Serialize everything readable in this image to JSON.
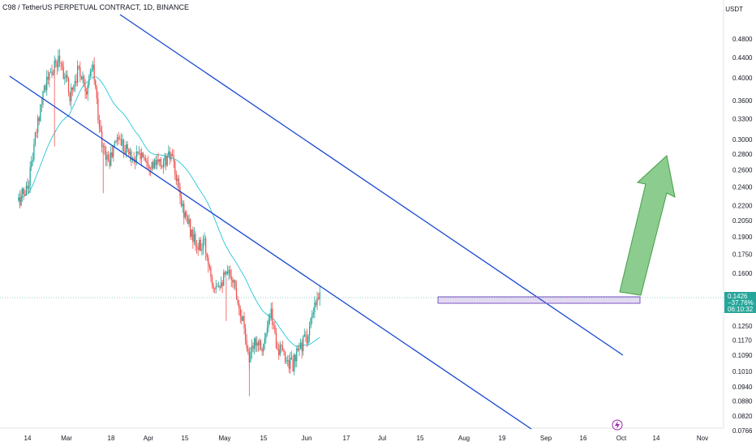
{
  "chart_data": {
    "type": "candlestick",
    "title": "C98 / TetherUS PERPETUAL CONTRACT, 1D, BINANCE",
    "unit": "USDT",
    "y_scale": "log",
    "ylim": [
      0.0766,
      0.53
    ],
    "y_ticks": [
      "0.4800",
      "0.4400",
      "0.4000",
      "0.3600",
      "0.3300",
      "0.3000",
      "0.2800",
      "0.2600",
      "0.2400",
      "0.2200",
      "0.2050",
      "0.1900",
      "0.1750",
      "0.1600",
      "0.1450",
      "0.1250",
      "0.1170",
      "0.1090",
      "0.1010",
      "0.0940",
      "0.0880",
      "0.0820",
      "0.0766"
    ],
    "x_ticks": [
      "14",
      "Mar",
      "18",
      "Apr",
      "15",
      "May",
      "15",
      "Jun",
      "17",
      "Jul",
      "15",
      "Aug",
      "19",
      "Sep",
      "16",
      "Oct",
      "14",
      "Nov"
    ],
    "price_tag": {
      "price": "0.1426",
      "change": "−37.76%",
      "countdown": "06:10:32"
    },
    "moving_average": {
      "color": "#26c6da"
    },
    "up_color": "#26a69a",
    "down_color": "#ef5350",
    "channel_color": "#1848d0",
    "zone_color": "#7e57c2",
    "arrow_color": "#66bb6a",
    "closes": [
      {
        "date": "2024-02-07",
        "close": 0.225
      },
      {
        "date": "2024-02-14",
        "close": 0.24
      },
      {
        "date": "2024-02-20",
        "close": 0.3
      },
      {
        "date": "2024-02-26",
        "close": 0.38
      },
      {
        "date": "2024-03-04",
        "close": 0.41
      },
      {
        "date": "2024-03-10",
        "close": 0.44
      },
      {
        "date": "2024-03-18",
        "close": 0.37
      },
      {
        "date": "2024-03-25",
        "close": 0.42
      },
      {
        "date": "2024-03-31",
        "close": 0.38
      },
      {
        "date": "2024-04-05",
        "close": 0.42
      },
      {
        "date": "2024-04-12",
        "close": 0.29
      },
      {
        "date": "2024-04-18",
        "close": 0.27
      },
      {
        "date": "2024-04-24",
        "close": 0.305
      },
      {
        "date": "2024-04-30",
        "close": 0.29
      },
      {
        "date": "2024-05-06",
        "close": 0.275
      },
      {
        "date": "2024-05-14",
        "close": 0.28
      },
      {
        "date": "2024-05-22",
        "close": 0.265
      },
      {
        "date": "2024-05-29",
        "close": 0.268
      },
      {
        "date": "2024-06-05",
        "close": 0.278
      },
      {
        "date": "2024-06-13",
        "close": 0.222
      },
      {
        "date": "2024-06-19",
        "close": 0.2
      },
      {
        "date": "2024-06-25",
        "close": 0.18
      },
      {
        "date": "2024-07-01",
        "close": 0.183
      },
      {
        "date": "2024-07-08",
        "close": 0.153
      },
      {
        "date": "2024-07-14",
        "close": 0.155
      },
      {
        "date": "2024-07-22",
        "close": 0.16
      },
      {
        "date": "2024-07-27",
        "close": 0.142
      },
      {
        "date": "2024-08-01",
        "close": 0.125
      },
      {
        "date": "2024-08-05",
        "close": 0.106
      },
      {
        "date": "2024-08-10",
        "close": 0.118
      },
      {
        "date": "2024-08-16",
        "close": 0.114
      },
      {
        "date": "2024-08-22",
        "close": 0.132
      },
      {
        "date": "2024-08-27",
        "close": 0.113
      },
      {
        "date": "2024-09-02",
        "close": 0.108
      },
      {
        "date": "2024-09-08",
        "close": 0.104
      },
      {
        "date": "2024-09-14",
        "close": 0.114
      },
      {
        "date": "2024-09-20",
        "close": 0.12
      },
      {
        "date": "2024-09-25",
        "close": 0.136
      },
      {
        "date": "2024-09-29",
        "close": 0.143
      }
    ]
  }
}
